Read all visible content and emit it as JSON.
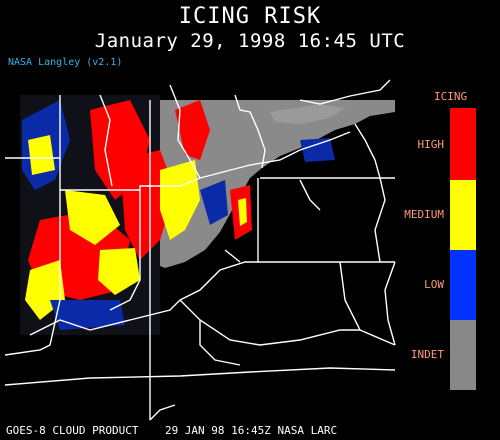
{
  "title": "ICING RISK",
  "subtitle": "January 29, 1998 16:45 UTC",
  "credit": "NASA Langley (v2.1)",
  "footer": "GOES-8 CLOUD PRODUCT    29 JAN 98 16:45Z NASA LARC",
  "legend": {
    "title": "ICING",
    "items": [
      {
        "label": "HIGH",
        "color": "#ff0000"
      },
      {
        "label": "MEDIUM",
        "color": "#ffff00"
      },
      {
        "label": "LOW",
        "color": "#0033ff"
      },
      {
        "label": "INDET",
        "color": "#888888"
      }
    ]
  },
  "colors": {
    "background": "#000000",
    "borders": "#ffffff",
    "credit": "#33b5e8",
    "legend_text": "#ff9a7a"
  }
}
